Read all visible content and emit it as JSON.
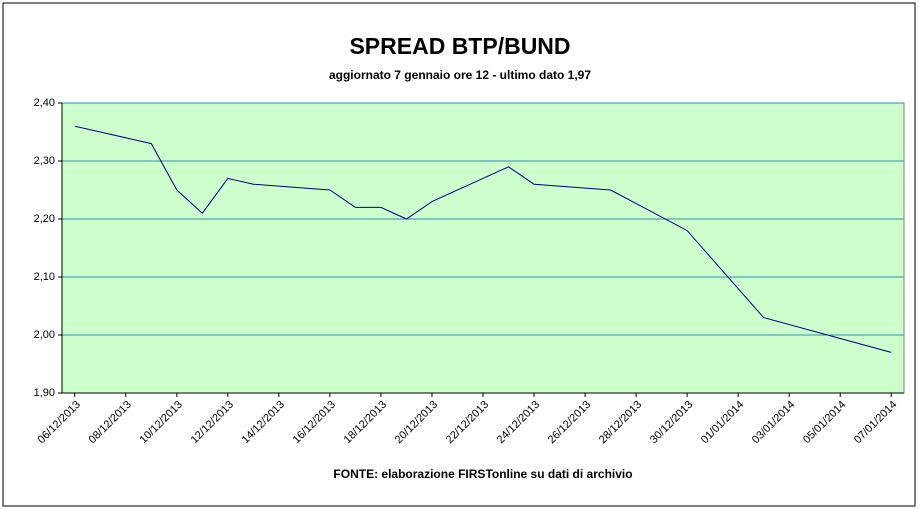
{
  "chart_data": {
    "type": "line",
    "title": "SPREAD BTP/BUND",
    "subtitle": "aggiornato 7 gennaio ore 12 - ultimo dato 1,97",
    "source": "FONTE: elaborazione FIRSTonline su dati di archivio",
    "x": [
      "06/12/2013",
      "09/12/2013",
      "10/12/2013",
      "11/12/2013",
      "12/12/2013",
      "13/12/2013",
      "16/12/2013",
      "17/12/2013",
      "18/12/2013",
      "19/12/2013",
      "20/12/2013",
      "23/12/2013",
      "24/12/2013",
      "27/12/2013",
      "30/12/2013",
      "02/01/2014",
      "07/01/2014"
    ],
    "series": [
      {
        "color": "#000080",
        "values": [
          2.36,
          2.33,
          2.25,
          2.21,
          2.27,
          2.26,
          2.25,
          2.22,
          2.22,
          2.2,
          2.23,
          2.29,
          2.26,
          2.25,
          2.18,
          2.03,
          1.97
        ]
      }
    ],
    "xlim": [
      "06/12/2013",
      "07/01/2014"
    ],
    "xticks": [
      "06/12/2013",
      "08/12/2013",
      "10/12/2013",
      "12/12/2013",
      "14/12/2013",
      "16/12/2013",
      "18/12/2013",
      "20/12/2013",
      "22/12/2013",
      "24/12/2013",
      "26/12/2013",
      "28/12/2013",
      "30/12/2013",
      "01/01/2014",
      "03/01/2014",
      "05/01/2014",
      "07/01/2014"
    ],
    "ylim": [
      1.9,
      2.4
    ],
    "yticks": [
      {
        "value": 1.9,
        "label": "1,90"
      },
      {
        "value": 2.0,
        "label": "2,00"
      },
      {
        "value": 2.1,
        "label": "2,10"
      },
      {
        "value": 2.2,
        "label": "2,20"
      },
      {
        "value": 2.3,
        "label": "2,30"
      },
      {
        "value": 2.4,
        "label": "2,40"
      }
    ],
    "grid": true,
    "background": "#ccffcc"
  }
}
